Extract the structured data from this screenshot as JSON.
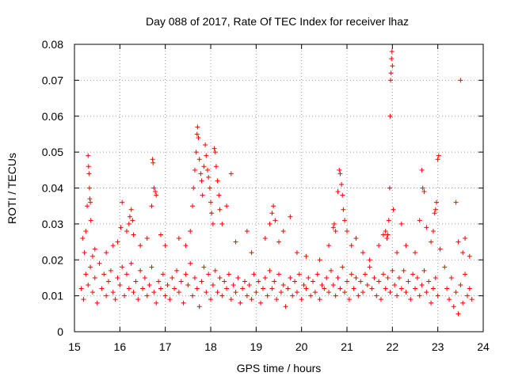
{
  "chart_data": {
    "type": "scatter",
    "title": "Day 088 of 2017, Rate Of TEC Index for receiver lhaz",
    "xlabel": "GPS time / hours",
    "ylabel": "ROTI / TECUs",
    "xlim": [
      15,
      24
    ],
    "ylim": [
      0,
      0.08
    ],
    "grid": true,
    "marker": "+",
    "color": "#ff0000",
    "x_ticks": [
      15,
      16,
      17,
      18,
      19,
      20,
      21,
      22,
      23,
      24
    ],
    "x_tick_labels": [
      "15",
      "16",
      "17",
      "18",
      "19",
      "20",
      "21",
      "22",
      "23",
      "24"
    ],
    "y_ticks": [
      0,
      0.01,
      0.02,
      0.03,
      0.04,
      0.05,
      0.06,
      0.07,
      0.08
    ],
    "y_tick_labels": [
      "0",
      "0.01",
      "0.02",
      "0.03",
      "0.04",
      "0.05",
      "0.06",
      "0.07",
      "0.08"
    ],
    "series": [
      {
        "name": "ROTI",
        "points": [
          [
            15.18,
            0.026
          ],
          [
            15.22,
            0.022
          ],
          [
            15.25,
            0.028
          ],
          [
            15.28,
            0.035
          ],
          [
            15.3,
            0.049
          ],
          [
            15.31,
            0.046
          ],
          [
            15.32,
            0.044
          ],
          [
            15.33,
            0.04
          ],
          [
            15.34,
            0.037
          ],
          [
            15.35,
            0.036
          ],
          [
            15.36,
            0.031
          ],
          [
            15.4,
            0.021
          ],
          [
            15.45,
            0.023
          ],
          [
            15.7,
            0.022
          ],
          [
            15.85,
            0.024
          ],
          [
            15.95,
            0.025
          ],
          [
            16.02,
            0.029
          ],
          [
            16.05,
            0.036
          ],
          [
            16.15,
            0.028
          ],
          [
            16.2,
            0.03
          ],
          [
            16.22,
            0.032
          ],
          [
            16.25,
            0.034
          ],
          [
            16.28,
            0.031
          ],
          [
            16.3,
            0.027
          ],
          [
            16.45,
            0.024
          ],
          [
            16.6,
            0.026
          ],
          [
            16.7,
            0.035
          ],
          [
            16.72,
            0.048
          ],
          [
            16.73,
            0.047
          ],
          [
            16.75,
            0.04
          ],
          [
            16.78,
            0.039
          ],
          [
            16.8,
            0.038
          ],
          [
            16.9,
            0.027
          ],
          [
            17.0,
            0.024
          ],
          [
            17.3,
            0.026
          ],
          [
            17.45,
            0.024
          ],
          [
            17.55,
            0.028
          ],
          [
            17.6,
            0.035
          ],
          [
            17.62,
            0.04
          ],
          [
            17.65,
            0.045
          ],
          [
            17.68,
            0.05
          ],
          [
            17.7,
            0.055
          ],
          [
            17.71,
            0.057
          ],
          [
            17.73,
            0.054
          ],
          [
            17.75,
            0.048
          ],
          [
            17.78,
            0.044
          ],
          [
            17.8,
            0.042
          ],
          [
            17.82,
            0.038
          ],
          [
            17.85,
            0.046
          ],
          [
            17.88,
            0.052
          ],
          [
            17.9,
            0.049
          ],
          [
            17.93,
            0.045
          ],
          [
            17.95,
            0.043
          ],
          [
            17.98,
            0.04
          ],
          [
            18.0,
            0.036
          ],
          [
            18.02,
            0.033
          ],
          [
            18.05,
            0.03
          ],
          [
            18.08,
            0.051
          ],
          [
            18.1,
            0.05
          ],
          [
            18.12,
            0.046
          ],
          [
            18.15,
            0.042
          ],
          [
            18.18,
            0.038
          ],
          [
            18.2,
            0.034
          ],
          [
            18.25,
            0.03
          ],
          [
            18.35,
            0.035
          ],
          [
            18.45,
            0.044
          ],
          [
            18.55,
            0.025
          ],
          [
            18.8,
            0.028
          ],
          [
            18.9,
            0.022
          ],
          [
            19.2,
            0.026
          ],
          [
            19.3,
            0.03
          ],
          [
            19.35,
            0.033
          ],
          [
            19.38,
            0.035
          ],
          [
            19.42,
            0.031
          ],
          [
            19.5,
            0.025
          ],
          [
            19.6,
            0.028
          ],
          [
            19.75,
            0.032
          ],
          [
            19.9,
            0.022
          ],
          [
            20.1,
            0.021
          ],
          [
            20.4,
            0.02
          ],
          [
            20.6,
            0.024
          ],
          [
            20.7,
            0.029
          ],
          [
            20.72,
            0.03
          ],
          [
            20.75,
            0.028
          ],
          [
            20.8,
            0.039
          ],
          [
            20.83,
            0.045
          ],
          [
            20.85,
            0.044
          ],
          [
            20.88,
            0.041
          ],
          [
            20.9,
            0.038
          ],
          [
            20.92,
            0.034
          ],
          [
            20.95,
            0.031
          ],
          [
            21.0,
            0.028
          ],
          [
            21.1,
            0.024
          ],
          [
            21.2,
            0.026
          ],
          [
            21.35,
            0.022
          ],
          [
            21.5,
            0.02
          ],
          [
            21.7,
            0.024
          ],
          [
            21.8,
            0.027
          ],
          [
            21.85,
            0.028
          ],
          [
            21.88,
            0.026
          ],
          [
            21.9,
            0.027
          ],
          [
            21.92,
            0.031
          ],
          [
            21.94,
            0.04
          ],
          [
            21.95,
            0.06
          ],
          [
            21.96,
            0.07
          ],
          [
            21.97,
            0.072
          ],
          [
            21.98,
            0.076
          ],
          [
            21.99,
            0.078
          ],
          [
            22.0,
            0.074
          ],
          [
            22.02,
            0.034
          ],
          [
            22.1,
            0.022
          ],
          [
            22.2,
            0.03
          ],
          [
            22.3,
            0.024
          ],
          [
            22.5,
            0.022
          ],
          [
            22.6,
            0.031
          ],
          [
            22.65,
            0.045
          ],
          [
            22.67,
            0.04
          ],
          [
            22.7,
            0.039
          ],
          [
            22.75,
            0.029
          ],
          [
            22.85,
            0.025
          ],
          [
            22.9,
            0.028
          ],
          [
            22.93,
            0.033
          ],
          [
            22.95,
            0.034
          ],
          [
            22.97,
            0.036
          ],
          [
            23.0,
            0.048
          ],
          [
            23.02,
            0.049
          ],
          [
            23.05,
            0.023
          ],
          [
            23.15,
            0.018
          ],
          [
            23.4,
            0.036
          ],
          [
            23.45,
            0.025
          ],
          [
            23.5,
            0.07
          ],
          [
            23.55,
            0.022
          ],
          [
            23.6,
            0.026
          ],
          [
            23.7,
            0.021
          ],
          [
            15.15,
            0.012
          ],
          [
            15.2,
            0.009
          ],
          [
            15.25,
            0.016
          ],
          [
            15.3,
            0.013
          ],
          [
            15.35,
            0.018
          ],
          [
            15.4,
            0.011
          ],
          [
            15.45,
            0.015
          ],
          [
            15.5,
            0.008
          ],
          [
            15.55,
            0.019
          ],
          [
            15.6,
            0.012
          ],
          [
            15.65,
            0.016
          ],
          [
            15.7,
            0.01
          ],
          [
            15.75,
            0.014
          ],
          [
            15.8,
            0.017
          ],
          [
            15.85,
            0.011
          ],
          [
            15.9,
            0.009
          ],
          [
            15.95,
            0.015
          ],
          [
            16.0,
            0.013
          ],
          [
            16.05,
            0.018
          ],
          [
            16.1,
            0.01
          ],
          [
            16.15,
            0.016
          ],
          [
            16.2,
            0.012
          ],
          [
            16.25,
            0.019
          ],
          [
            16.3,
            0.011
          ],
          [
            16.35,
            0.014
          ],
          [
            16.4,
            0.009
          ],
          [
            16.45,
            0.017
          ],
          [
            16.5,
            0.012
          ],
          [
            16.55,
            0.015
          ],
          [
            16.6,
            0.01
          ],
          [
            16.65,
            0.013
          ],
          [
            16.7,
            0.018
          ],
          [
            16.75,
            0.011
          ],
          [
            16.8,
            0.008
          ],
          [
            16.85,
            0.014
          ],
          [
            16.9,
            0.012
          ],
          [
            16.95,
            0.016
          ],
          [
            17.0,
            0.01
          ],
          [
            17.05,
            0.013
          ],
          [
            17.1,
            0.009
          ],
          [
            17.15,
            0.015
          ],
          [
            17.2,
            0.012
          ],
          [
            17.25,
            0.017
          ],
          [
            17.3,
            0.011
          ],
          [
            17.35,
            0.014
          ],
          [
            17.4,
            0.008
          ],
          [
            17.45,
            0.016
          ],
          [
            17.5,
            0.013
          ],
          [
            17.55,
            0.019
          ],
          [
            17.6,
            0.01
          ],
          [
            17.65,
            0.015
          ],
          [
            17.7,
            0.012
          ],
          [
            17.75,
            0.007
          ],
          [
            17.8,
            0.014
          ],
          [
            17.85,
            0.018
          ],
          [
            17.9,
            0.011
          ],
          [
            17.95,
            0.016
          ],
          [
            18.0,
            0.009
          ],
          [
            18.05,
            0.013
          ],
          [
            18.1,
            0.017
          ],
          [
            18.15,
            0.011
          ],
          [
            18.2,
            0.015
          ],
          [
            18.25,
            0.01
          ],
          [
            18.3,
            0.014
          ],
          [
            18.35,
            0.012
          ],
          [
            18.4,
            0.016
          ],
          [
            18.45,
            0.009
          ],
          [
            18.5,
            0.013
          ],
          [
            18.55,
            0.011
          ],
          [
            18.6,
            0.015
          ],
          [
            18.65,
            0.008
          ],
          [
            18.7,
            0.012
          ],
          [
            18.75,
            0.014
          ],
          [
            18.8,
            0.01
          ],
          [
            18.85,
            0.013
          ],
          [
            18.9,
            0.009
          ],
          [
            18.95,
            0.016
          ],
          [
            19.0,
            0.011
          ],
          [
            19.05,
            0.014
          ],
          [
            19.1,
            0.008
          ],
          [
            19.15,
            0.012
          ],
          [
            19.2,
            0.015
          ],
          [
            19.25,
            0.01
          ],
          [
            19.3,
            0.017
          ],
          [
            19.35,
            0.012
          ],
          [
            19.4,
            0.014
          ],
          [
            19.45,
            0.009
          ],
          [
            19.5,
            0.016
          ],
          [
            19.55,
            0.011
          ],
          [
            19.6,
            0.013
          ],
          [
            19.65,
            0.007
          ],
          [
            19.7,
            0.012
          ],
          [
            19.75,
            0.015
          ],
          [
            19.8,
            0.01
          ],
          [
            19.85,
            0.014
          ],
          [
            19.9,
            0.011
          ],
          [
            19.95,
            0.016
          ],
          [
            20.0,
            0.009
          ],
          [
            20.05,
            0.013
          ],
          [
            20.1,
            0.012
          ],
          [
            20.15,
            0.015
          ],
          [
            20.2,
            0.01
          ],
          [
            20.25,
            0.014
          ],
          [
            20.3,
            0.011
          ],
          [
            20.35,
            0.016
          ],
          [
            20.4,
            0.009
          ],
          [
            20.45,
            0.013
          ],
          [
            20.5,
            0.012
          ],
          [
            20.55,
            0.015
          ],
          [
            20.6,
            0.011
          ],
          [
            20.65,
            0.017
          ],
          [
            20.7,
            0.013
          ],
          [
            20.75,
            0.01
          ],
          [
            20.8,
            0.015
          ],
          [
            20.85,
            0.012
          ],
          [
            20.9,
            0.018
          ],
          [
            20.95,
            0.011
          ],
          [
            21.0,
            0.014
          ],
          [
            21.05,
            0.009
          ],
          [
            21.1,
            0.016
          ],
          [
            21.15,
            0.012
          ],
          [
            21.2,
            0.015
          ],
          [
            21.25,
            0.01
          ],
          [
            21.3,
            0.014
          ],
          [
            21.35,
            0.011
          ],
          [
            21.4,
            0.016
          ],
          [
            21.45,
            0.013
          ],
          [
            21.5,
            0.018
          ],
          [
            21.55,
            0.012
          ],
          [
            21.6,
            0.015
          ],
          [
            21.65,
            0.01
          ],
          [
            21.7,
            0.014
          ],
          [
            21.75,
            0.009
          ],
          [
            21.8,
            0.016
          ],
          [
            21.85,
            0.012
          ],
          [
            21.9,
            0.015
          ],
          [
            21.95,
            0.011
          ],
          [
            22.0,
            0.017
          ],
          [
            22.05,
            0.013
          ],
          [
            22.1,
            0.01
          ],
          [
            22.15,
            0.015
          ],
          [
            22.2,
            0.012
          ],
          [
            22.25,
            0.017
          ],
          [
            22.3,
            0.011
          ],
          [
            22.35,
            0.014
          ],
          [
            22.4,
            0.009
          ],
          [
            22.45,
            0.016
          ],
          [
            22.5,
            0.012
          ],
          [
            22.55,
            0.015
          ],
          [
            22.6,
            0.01
          ],
          [
            22.65,
            0.013
          ],
          [
            22.7,
            0.017
          ],
          [
            22.75,
            0.011
          ],
          [
            22.8,
            0.014
          ],
          [
            22.85,
            0.008
          ],
          [
            22.9,
            0.012
          ],
          [
            22.95,
            0.015
          ],
          [
            23.0,
            0.01
          ],
          [
            23.2,
            0.012
          ],
          [
            23.25,
            0.009
          ],
          [
            23.3,
            0.015
          ],
          [
            23.35,
            0.007
          ],
          [
            23.4,
            0.011
          ],
          [
            23.45,
            0.005
          ],
          [
            23.5,
            0.013
          ],
          [
            23.55,
            0.008
          ],
          [
            23.6,
            0.016
          ],
          [
            23.65,
            0.01
          ],
          [
            23.7,
            0.012
          ],
          [
            23.75,
            0.009
          ]
        ]
      }
    ]
  }
}
